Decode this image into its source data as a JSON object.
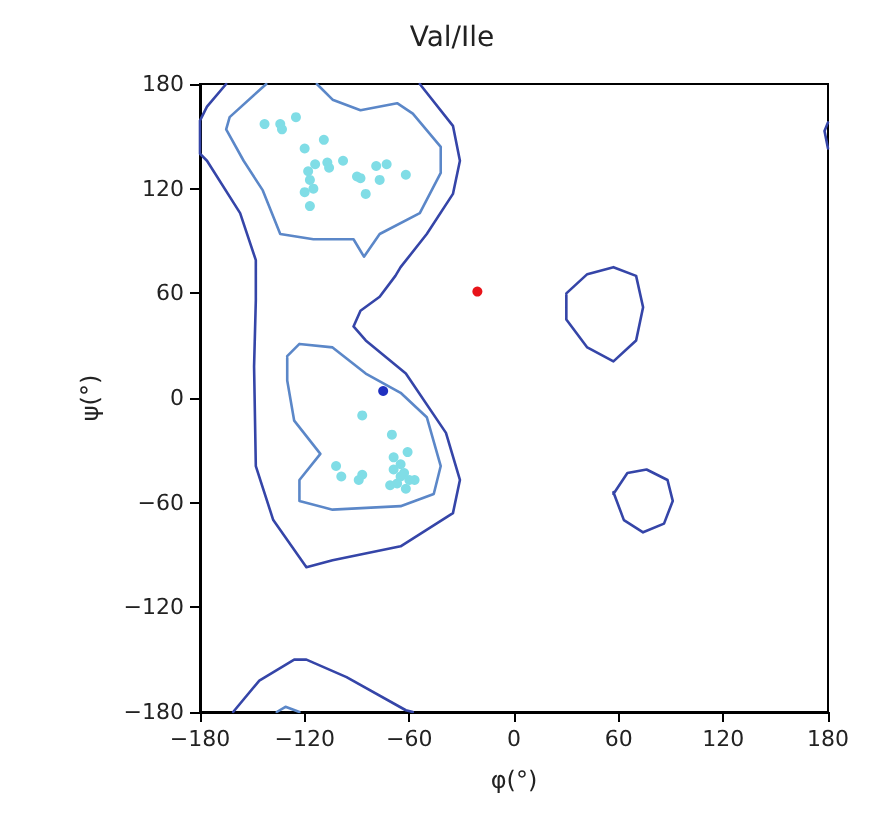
{
  "chart_data": {
    "type": "scatter",
    "title": "Val/Ile",
    "xlabel": "φ(°)",
    "ylabel": "ψ(°)",
    "xlim": [
      -180,
      180
    ],
    "ylim": [
      -180,
      180
    ],
    "xticks": [
      {
        "value": -180,
        "label": "−180"
      },
      {
        "value": -120,
        "label": "−120"
      },
      {
        "value": -60,
        "label": "−60"
      },
      0,
      60,
      120,
      180
    ],
    "yticks": [
      {
        "value": -180,
        "label": "−180"
      },
      {
        "value": -120,
        "label": "−120"
      },
      {
        "value": -60,
        "label": "−60"
      },
      0,
      60,
      120,
      180
    ],
    "grid": false,
    "series": [
      {
        "type": "line",
        "marker": "none",
        "color": "#3545a8",
        "x": [
          -165,
          -176,
          -180,
          -180,
          -176,
          -157,
          -148,
          -148,
          -149,
          -148,
          -138,
          -119,
          -104,
          -65,
          -35,
          -31,
          -39,
          -62,
          -85,
          -92,
          -88,
          -77,
          -68,
          -65,
          -50,
          -35,
          -31,
          -35,
          -54
        ],
        "values": [
          180,
          167,
          159,
          140,
          136,
          106,
          79,
          56,
          18,
          -39,
          -70,
          -97,
          -93,
          -85,
          -66,
          -47,
          -20,
          14,
          33,
          41,
          50,
          58,
          70,
          75,
          94,
          117,
          136,
          156,
          180
        ]
      },
      {
        "type": "line",
        "marker": "none",
        "color": "#5b87c8",
        "x": [
          -142,
          -163,
          -165,
          -155,
          -144,
          -134,
          -115,
          -92,
          -86,
          -77,
          -54,
          -42,
          -42,
          -58,
          -67,
          -88,
          -104,
          -113
        ],
        "values": [
          180,
          161,
          154,
          136,
          119,
          94,
          91,
          91,
          81,
          94,
          106,
          129,
          144,
          163,
          169,
          165,
          171,
          180
        ]
      },
      {
        "type": "line",
        "marker": "none",
        "color": "#5b87c8",
        "x": [
          -130,
          -123,
          -104,
          -85,
          -65,
          -50,
          -42,
          -46,
          -65,
          -104,
          -123,
          -123,
          -111,
          -126,
          -130,
          -130
        ],
        "values": [
          24,
          31,
          29,
          14,
          3,
          -11,
          -39,
          -55,
          -62,
          -64,
          -59,
          -47,
          -32,
          -13,
          10,
          23
        ]
      },
      {
        "type": "line",
        "marker": "none",
        "color": "#3545a8",
        "x": [
          -161,
          -146,
          -126,
          -119,
          -96,
          -62,
          -58
        ],
        "values": [
          -180,
          -162,
          -150,
          -150,
          -160,
          -179,
          -180
        ]
      },
      {
        "type": "line",
        "marker": "none",
        "color": "#5b87c8",
        "x": [
          -136,
          -131,
          -123
        ],
        "values": [
          -180,
          -177,
          -180
        ]
      },
      {
        "type": "line",
        "marker": "none",
        "color": "#3545a8",
        "x": [
          30,
          42,
          57,
          70,
          74,
          70,
          57,
          42,
          30,
          30
        ],
        "values": [
          60,
          71,
          75,
          70,
          52,
          33,
          21,
          29,
          45,
          59
        ]
      },
      {
        "type": "line",
        "marker": "none",
        "color": "#3545a8",
        "x": [
          57,
          65,
          76,
          88,
          91,
          86,
          74,
          63,
          57
        ],
        "values": [
          -55,
          -43,
          -41,
          -47,
          -59,
          -72,
          -77,
          -70,
          -54
        ]
      },
      {
        "type": "line",
        "marker": "none",
        "color": "#3545a8",
        "x": [
          180,
          178,
          180
        ],
        "values": [
          158,
          153,
          143
        ]
      },
      {
        "marker": "circle",
        "color": "#80dde6",
        "x": [
          -143,
          -134,
          -133,
          -125,
          -120,
          -109,
          -114,
          -118,
          -107,
          -106,
          -98,
          -90,
          -88,
          -79,
          -73,
          -62,
          -77,
          -85,
          -117,
          -115,
          -120,
          -117,
          -87,
          -70,
          -102,
          -99,
          -89,
          -87,
          -69,
          -61,
          -65,
          -69,
          -63,
          -60,
          -67,
          -62,
          -57,
          -71,
          -65
        ],
        "values": [
          157,
          157,
          154,
          161,
          143,
          148,
          134,
          130,
          135,
          132,
          136,
          127,
          126,
          133,
          134,
          128,
          125,
          117,
          125,
          120,
          118,
          110,
          -10,
          -21,
          -39,
          -45,
          -47,
          -44,
          -34,
          -31,
          -38,
          -41,
          -43,
          -47,
          -49,
          -52,
          -47,
          -50,
          -45
        ]
      },
      {
        "marker": "circle",
        "color": "#e8141a",
        "x": [
          -21
        ],
        "values": [
          61
        ]
      },
      {
        "marker": "circle",
        "color": "#2030c0",
        "x": [
          -75
        ],
        "values": [
          4
        ]
      }
    ]
  }
}
